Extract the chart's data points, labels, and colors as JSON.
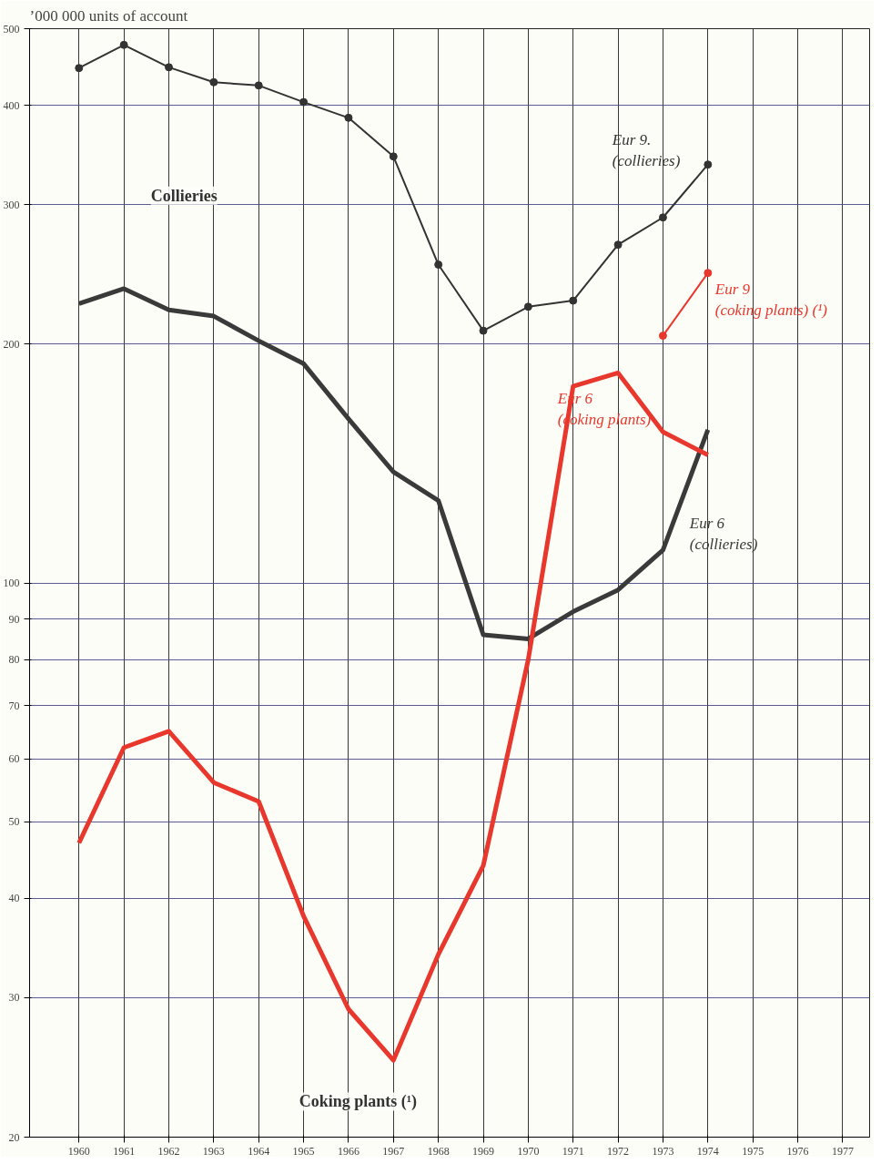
{
  "chart_data": {
    "type": "line",
    "title": "’000 000 units of account",
    "log": "y",
    "grid": true,
    "x": [
      1960,
      1961,
      1962,
      1963,
      1964,
      1965,
      1966,
      1967,
      1968,
      1969,
      1970,
      1971,
      1972,
      1973,
      1974
    ],
    "xlim": [
      1958.9,
      1977.6
    ],
    "xticks": [
      1960,
      1961,
      1962,
      1963,
      1964,
      1965,
      1966,
      1967,
      1968,
      1969,
      1970,
      1971,
      1972,
      1973,
      1974,
      1975,
      1976,
      1977
    ],
    "ylim": [
      20,
      500
    ],
    "yticks": [
      20,
      30,
      40,
      50,
      60,
      70,
      80,
      90,
      100,
      200,
      300,
      400,
      500
    ],
    "series": [
      {
        "name": "Eur 9.\n(collieries)",
        "color": "#333333",
        "marker": "circle",
        "values": [
          446,
          477,
          447,
          428,
          424,
          404,
          386,
          345,
          252,
          208,
          223,
          227,
          267,
          289,
          337
        ]
      },
      {
        "name": "Eur 6\n(collieries)",
        "color": "#3a3a3a",
        "marker": "none",
        "values": [
          225,
          235,
          221,
          217,
          202,
          189,
          161,
          138,
          127,
          86,
          85,
          92,
          98,
          110,
          156
        ]
      },
      {
        "name": "Eur 6\n(coking plants)",
        "color": "#e8372c",
        "marker": "none",
        "values": [
          47,
          62,
          65,
          56,
          53,
          38,
          29,
          25,
          34,
          44,
          80,
          177,
          184,
          155,
          145
        ]
      },
      {
        "name": "Eur 9\n(coking plants) (¹)",
        "color": "#e8372c",
        "marker": "circle",
        "x": [
          1973,
          1974
        ],
        "values": [
          205,
          246
        ]
      }
    ],
    "annotations": [
      "Collieries",
      "Coking plants (¹)"
    ]
  }
}
